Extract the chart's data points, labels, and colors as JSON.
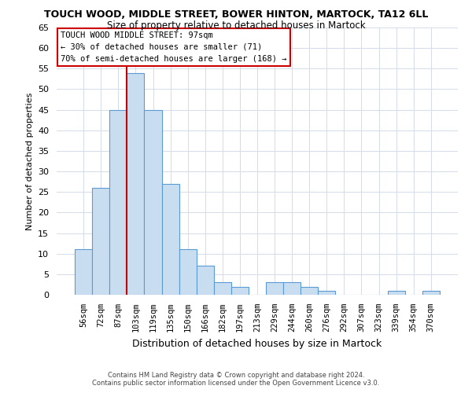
{
  "title": "TOUCH WOOD, MIDDLE STREET, BOWER HINTON, MARTOCK, TA12 6LL",
  "subtitle": "Size of property relative to detached houses in Martock",
  "xlabel": "Distribution of detached houses by size in Martock",
  "ylabel": "Number of detached properties",
  "footer1": "Contains HM Land Registry data © Crown copyright and database right 2024.",
  "footer2": "Contains public sector information licensed under the Open Government Licence v3.0.",
  "bin_labels": [
    "56sqm",
    "72sqm",
    "87sqm",
    "103sqm",
    "119sqm",
    "135sqm",
    "150sqm",
    "166sqm",
    "182sqm",
    "197sqm",
    "213sqm",
    "229sqm",
    "244sqm",
    "260sqm",
    "276sqm",
    "292sqm",
    "307sqm",
    "323sqm",
    "339sqm",
    "354sqm",
    "370sqm"
  ],
  "bin_values": [
    11,
    26,
    45,
    54,
    45,
    27,
    11,
    7,
    3,
    2,
    0,
    3,
    3,
    2,
    1,
    0,
    0,
    0,
    1,
    0,
    1
  ],
  "bar_color": "#c9ddf0",
  "bar_edge_color": "#5b9bd5",
  "ylim": [
    0,
    65
  ],
  "yticks": [
    0,
    5,
    10,
    15,
    20,
    25,
    30,
    35,
    40,
    45,
    50,
    55,
    60,
    65
  ],
  "vline_x_idx": 3,
  "vline_color": "#cc0000",
  "annotation_title": "TOUCH WOOD MIDDLE STREET: 97sqm",
  "annotation_line1": "← 30% of detached houses are smaller (71)",
  "annotation_line2": "70% of semi-detached houses are larger (168) →",
  "background_color": "#ffffff",
  "grid_color": "#d4dde8"
}
